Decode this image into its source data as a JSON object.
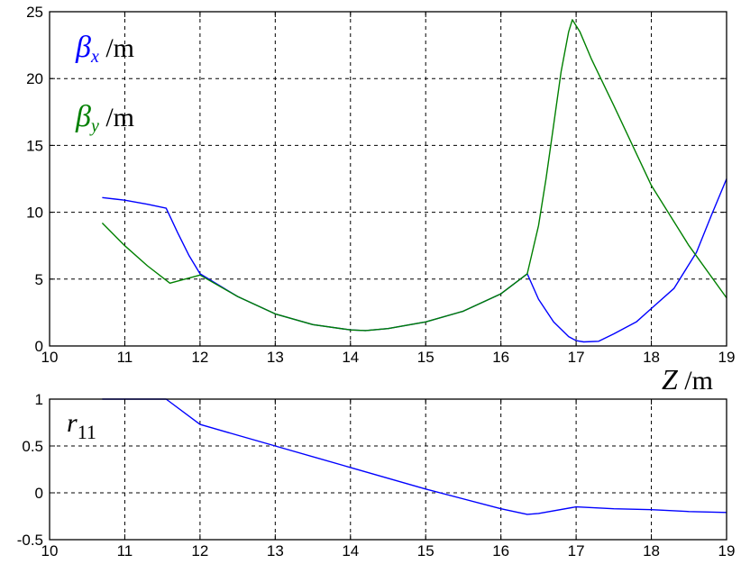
{
  "chart_data": [
    {
      "type": "line",
      "title": "",
      "xlim": [
        10,
        19
      ],
      "ylim": [
        0,
        25
      ],
      "x_ticks": [
        10,
        11,
        12,
        13,
        14,
        15,
        16,
        17,
        18,
        19
      ],
      "y_ticks": [
        0,
        5,
        10,
        15,
        20,
        25
      ],
      "y_tick_labels": [
        "0",
        "5",
        "10",
        "15",
        "20",
        "25"
      ],
      "grid": true,
      "annotations": {
        "beta_x": {
          "symbol": "β",
          "sub": "x",
          "unit": " /m"
        },
        "beta_y": {
          "symbol": "β",
          "sub": "y",
          "unit": " /m"
        },
        "z_axis": {
          "symbol": "Z",
          "unit": " /m"
        }
      },
      "colors": {
        "beta_x": "#0000ff",
        "beta_y": "#008000"
      },
      "series": [
        {
          "key": "beta_x",
          "color": "#0000ff",
          "x": [
            10.7,
            11.0,
            11.3,
            11.55,
            11.7,
            11.85,
            12.0,
            12.5,
            13.0,
            13.5,
            14.0,
            14.2,
            14.5,
            15.0,
            15.5,
            16.0,
            16.35,
            16.5,
            16.7,
            16.9,
            17.0,
            17.1,
            17.3,
            17.5,
            17.8,
            18.0,
            18.3,
            18.6,
            18.8,
            19.0
          ],
          "y": [
            11.1,
            10.9,
            10.6,
            10.3,
            8.5,
            6.8,
            5.4,
            3.7,
            2.4,
            1.6,
            1.2,
            1.15,
            1.3,
            1.8,
            2.6,
            3.9,
            5.4,
            3.5,
            1.8,
            0.7,
            0.4,
            0.3,
            0.35,
            0.9,
            1.8,
            2.8,
            4.3,
            7.0,
            9.8,
            12.5
          ]
        },
        {
          "key": "beta_y",
          "color": "#008000",
          "x": [
            10.7,
            11.0,
            11.3,
            11.6,
            11.8,
            12.0,
            12.5,
            13.0,
            13.5,
            14.0,
            14.2,
            14.5,
            15.0,
            15.5,
            16.0,
            16.35,
            16.5,
            16.6,
            16.7,
            16.8,
            16.9,
            16.95,
            17.05,
            17.2,
            17.5,
            18.0,
            18.5,
            19.0
          ],
          "y": [
            9.2,
            7.5,
            6.0,
            4.7,
            5.0,
            5.3,
            3.7,
            2.4,
            1.6,
            1.2,
            1.15,
            1.3,
            1.8,
            2.6,
            3.9,
            5.4,
            9.0,
            12.5,
            16.5,
            20.5,
            23.5,
            24.4,
            23.5,
            21.5,
            18.0,
            12.0,
            7.5,
            3.6
          ]
        }
      ]
    },
    {
      "type": "line",
      "title": "",
      "xlim": [
        10,
        19
      ],
      "ylim": [
        -0.5,
        1
      ],
      "x_ticks": [
        10,
        11,
        12,
        13,
        14,
        15,
        16,
        17,
        18,
        19
      ],
      "y_ticks": [
        -0.5,
        0,
        0.5,
        1
      ],
      "y_tick_labels": [
        "-0.5",
        "0",
        "0.5",
        "1"
      ],
      "grid": true,
      "annotations": {
        "r11": {
          "symbol": "r",
          "sub": "11"
        }
      },
      "colors": {
        "r11": "#0000ff"
      },
      "series": [
        {
          "key": "r11",
          "color": "#0000ff",
          "x": [
            10.7,
            11.0,
            11.55,
            12.0,
            13.0,
            14.0,
            15.0,
            16.0,
            16.35,
            16.5,
            17.0,
            17.5,
            18.0,
            18.5,
            19.0
          ],
          "y": [
            1.0,
            1.0,
            1.0,
            0.73,
            0.5,
            0.27,
            0.04,
            -0.17,
            -0.23,
            -0.22,
            -0.15,
            -0.17,
            -0.18,
            -0.2,
            -0.21
          ]
        }
      ]
    }
  ]
}
